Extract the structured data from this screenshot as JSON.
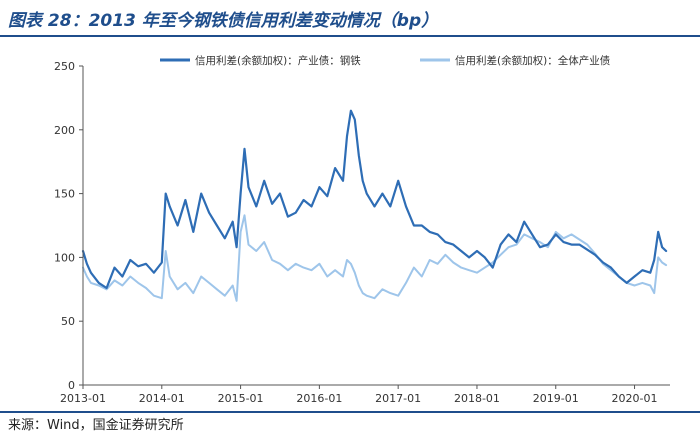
{
  "title": "图表 28：2013 年至今钢铁债信用利差变动情况（bp）",
  "source": "来源：Wind，国金证券研究所",
  "colors": {
    "steel": "#2e6db5",
    "all": "#9ec5ea",
    "accent": "#1f4e8c"
  },
  "chart_data": {
    "type": "line",
    "title": "2013 年至今钢铁债信用利差变动情况（bp）",
    "xlabel": "",
    "ylabel": "",
    "ylim": [
      0,
      250
    ],
    "yticks": [
      0,
      50,
      100,
      150,
      200,
      250
    ],
    "xlim": [
      2013.0,
      2020.45
    ],
    "xticks": [
      {
        "label": "2013-01",
        "value": 2013.0
      },
      {
        "label": "2014-01",
        "value": 2014.0
      },
      {
        "label": "2015-01",
        "value": 2015.0
      },
      {
        "label": "2016-01",
        "value": 2016.0
      },
      {
        "label": "2017-01",
        "value": 2017.0
      },
      {
        "label": "2018-01",
        "value": 2018.0
      },
      {
        "label": "2019-01",
        "value": 2019.0
      },
      {
        "label": "2020-01",
        "value": 2020.0
      }
    ],
    "legend_position": "top",
    "series": [
      {
        "name": "信用利差(余额加权)：产业债：钢铁",
        "color": "#2e6db5",
        "x": [
          2013.0,
          2013.05,
          2013.1,
          2013.2,
          2013.3,
          2013.4,
          2013.5,
          2013.6,
          2013.7,
          2013.8,
          2013.9,
          2014.0,
          2014.05,
          2014.1,
          2014.2,
          2014.3,
          2014.4,
          2014.5,
          2014.6,
          2014.7,
          2014.8,
          2014.9,
          2014.95,
          2015.0,
          2015.05,
          2015.1,
          2015.2,
          2015.3,
          2015.4,
          2015.5,
          2015.6,
          2015.7,
          2015.8,
          2015.9,
          2016.0,
          2016.1,
          2016.2,
          2016.3,
          2016.35,
          2016.4,
          2016.45,
          2016.5,
          2016.55,
          2016.6,
          2016.7,
          2016.8,
          2016.9,
          2017.0,
          2017.1,
          2017.2,
          2017.3,
          2017.4,
          2017.5,
          2017.6,
          2017.7,
          2017.8,
          2017.9,
          2018.0,
          2018.1,
          2018.2,
          2018.3,
          2018.4,
          2018.5,
          2018.6,
          2018.7,
          2018.8,
          2018.9,
          2019.0,
          2019.1,
          2019.2,
          2019.3,
          2019.4,
          2019.5,
          2019.6,
          2019.7,
          2019.8,
          2019.9,
          2020.0,
          2020.1,
          2020.2,
          2020.25,
          2020.3,
          2020.35,
          2020.4
        ],
        "values": [
          105,
          95,
          88,
          80,
          76,
          92,
          85,
          98,
          93,
          95,
          88,
          96,
          150,
          140,
          125,
          145,
          120,
          150,
          135,
          125,
          115,
          128,
          108,
          150,
          185,
          155,
          140,
          160,
          142,
          150,
          132,
          135,
          145,
          140,
          155,
          148,
          170,
          160,
          195,
          215,
          208,
          180,
          160,
          150,
          140,
          150,
          140,
          160,
          140,
          125,
          125,
          120,
          118,
          112,
          110,
          105,
          100,
          105,
          100,
          92,
          110,
          118,
          112,
          128,
          118,
          108,
          110,
          118,
          112,
          110,
          110,
          106,
          102,
          96,
          92,
          85,
          80,
          85,
          90,
          88,
          98,
          120,
          108,
          105
        ]
      },
      {
        "name": "信用利差(余额加权)：全体产业债",
        "color": "#9ec5ea",
        "x": [
          2013.0,
          2013.05,
          2013.1,
          2013.2,
          2013.3,
          2013.4,
          2013.5,
          2013.6,
          2013.7,
          2013.8,
          2013.9,
          2014.0,
          2014.05,
          2014.1,
          2014.2,
          2014.3,
          2014.4,
          2014.5,
          2014.6,
          2014.7,
          2014.8,
          2014.9,
          2014.95,
          2015.0,
          2015.05,
          2015.1,
          2015.2,
          2015.3,
          2015.4,
          2015.5,
          2015.6,
          2015.7,
          2015.8,
          2015.9,
          2016.0,
          2016.1,
          2016.2,
          2016.3,
          2016.35,
          2016.4,
          2016.45,
          2016.5,
          2016.55,
          2016.6,
          2016.7,
          2016.8,
          2016.9,
          2017.0,
          2017.1,
          2017.2,
          2017.3,
          2017.4,
          2017.5,
          2017.6,
          2017.7,
          2017.8,
          2017.9,
          2018.0,
          2018.1,
          2018.2,
          2018.3,
          2018.4,
          2018.5,
          2018.6,
          2018.7,
          2018.8,
          2018.9,
          2019.0,
          2019.1,
          2019.2,
          2019.3,
          2019.4,
          2019.5,
          2019.6,
          2019.7,
          2019.8,
          2019.9,
          2020.0,
          2020.1,
          2020.2,
          2020.25,
          2020.3,
          2020.35,
          2020.4
        ],
        "values": [
          92,
          85,
          80,
          78,
          75,
          82,
          78,
          85,
          80,
          76,
          70,
          68,
          105,
          85,
          75,
          80,
          72,
          85,
          80,
          75,
          70,
          78,
          66,
          120,
          133,
          110,
          105,
          112,
          98,
          95,
          90,
          95,
          92,
          90,
          95,
          85,
          90,
          85,
          98,
          95,
          88,
          78,
          72,
          70,
          68,
          75,
          72,
          70,
          80,
          92,
          85,
          98,
          95,
          102,
          96,
          92,
          90,
          88,
          92,
          96,
          102,
          108,
          110,
          118,
          115,
          112,
          108,
          120,
          115,
          118,
          114,
          110,
          103,
          95,
          90,
          85,
          80,
          78,
          80,
          78,
          72,
          100,
          96,
          94
        ]
      }
    ]
  }
}
